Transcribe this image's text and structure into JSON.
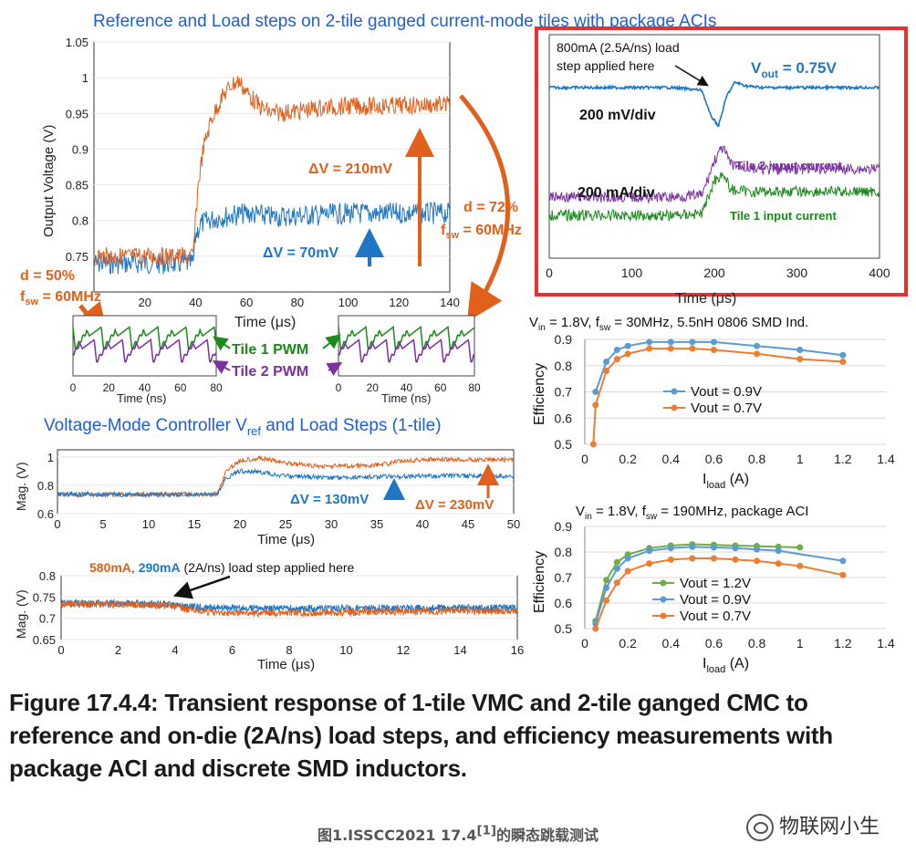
{
  "chart_data": [
    {
      "type": "line",
      "title": "Reference and Load steps on 2-tile ganged current-mode tiles with package ACIs",
      "xlabel": "Time (μs)",
      "ylabel": "Output Voltage (V)",
      "xlim": [
        0,
        140
      ],
      "ylim": [
        0.7,
        1.05
      ],
      "xticks": [
        "20",
        "40",
        "60",
        "80",
        "100",
        "120",
        "140"
      ],
      "yticks": [
        "0.75",
        "0.8",
        "0.85",
        "0.9",
        "0.95",
        "1",
        "1.05"
      ],
      "series": [
        {
          "color": "#e0601c",
          "x": [
            0,
            10,
            20,
            30,
            39,
            40,
            41,
            43,
            46,
            50,
            54,
            57,
            60,
            65,
            70,
            80,
            90,
            100,
            110,
            120,
            130,
            139
          ],
          "y": [
            0.75,
            0.75,
            0.75,
            0.75,
            0.75,
            0.8,
            0.85,
            0.9,
            0.94,
            0.97,
            0.99,
            0.995,
            0.98,
            0.96,
            0.95,
            0.953,
            0.958,
            0.96,
            0.96,
            0.961,
            0.962,
            0.962
          ]
        },
        {
          "color": "#1f77c4",
          "x": [
            0,
            10,
            20,
            30,
            39,
            40,
            42,
            45,
            50,
            60,
            70,
            80,
            90,
            100,
            110,
            120,
            130,
            139
          ],
          "y": [
            0.74,
            0.74,
            0.74,
            0.74,
            0.74,
            0.78,
            0.795,
            0.8,
            0.805,
            0.81,
            0.805,
            0.807,
            0.808,
            0.81,
            0.81,
            0.81,
            0.81,
            0.81
          ]
        }
      ],
      "annotations": {
        "dv_orange": "ΔV = 210mV",
        "dv_blue": "ΔV = 70mV",
        "d50_line1": "d = 50%",
        "d50_line2": "f",
        "d50_sub": "sw",
        "d50_tail": " = 60MHz",
        "d72_line1": "d = 72%",
        "d72_line2": "f",
        "d72_sub": "sw",
        "d72_tail": " = 60MHz"
      }
    },
    {
      "type": "line",
      "title": "",
      "xlabel": "Time (μs)",
      "xlim": [
        0,
        400
      ],
      "xticks": [
        "0",
        "100",
        "200",
        "300",
        "400"
      ],
      "series": [
        {
          "name": "Vout",
          "color": "#1f77c4",
          "x": [
            0,
            150,
            185,
            195,
            205,
            215,
            225,
            240,
            260,
            300,
            400
          ],
          "y": [
            0,
            0,
            -0.1,
            -1.0,
            -1.4,
            -0.3,
            0.2,
            0.05,
            0,
            0,
            0
          ]
        },
        {
          "name": "Tile 2 input current",
          "color": "#7b2fa0",
          "x": [
            0,
            150,
            185,
            200,
            210,
            220,
            240,
            260,
            300,
            400
          ],
          "y": [
            0,
            0,
            0.1,
            2.0,
            2.7,
            1.8,
            1.6,
            1.5,
            1.55,
            1.55
          ]
        },
        {
          "name": "Tile 1 input current",
          "color": "#1a8a1a",
          "x": [
            0,
            150,
            185,
            200,
            210,
            220,
            240,
            260,
            300,
            400
          ],
          "y": [
            0,
            0,
            0.1,
            1.9,
            2.3,
            1.4,
            1.3,
            1.3,
            1.3,
            1.3
          ]
        }
      ],
      "annotations": {
        "step_l1": "800mA (2.5A/ns) load",
        "step_l2": "step applied here",
        "vout_label": "V",
        "vout_sub": "out",
        "vout_tail": " = 0.75V",
        "mv_div": "200 mV/div",
        "ma_div": "200 mA/div",
        "tile2": "Tile 2 input current",
        "tile1": "Tile 1 input current"
      }
    },
    {
      "type": "line",
      "title": "",
      "xlabel": "Time (ns)",
      "xlim": [
        0,
        80
      ],
      "xticks": [
        "0",
        "20",
        "40",
        "60",
        "80"
      ],
      "series": [
        {
          "name": "Tile 1 PWM",
          "color": "#1a8a1a"
        },
        {
          "name": "Tile 2 PWM",
          "color": "#7b2fa0"
        }
      ],
      "annotations": {
        "tile1": "Tile 1 PWM",
        "tile2": "Tile 2 PWM"
      }
    },
    {
      "type": "line",
      "title": "Voltage-Mode Controller V",
      "title_sub": "ref",
      "title_tail": " and Load Steps (1-tile)",
      "xlabel": "Time (μs)",
      "ylabel": "Mag. (V)",
      "xlim": [
        0,
        50
      ],
      "ylim": [
        0.6,
        1.05
      ],
      "xticks": [
        "0",
        "5",
        "10",
        "15",
        "20",
        "25",
        "30",
        "35",
        "40",
        "45",
        "50"
      ],
      "yticks": [
        "0.6",
        "0.8",
        "1"
      ],
      "series": [
        {
          "color": "#e0601c",
          "x": [
            0,
            10,
            17.5,
            18.5,
            20,
            22,
            25,
            28,
            30,
            34,
            36,
            38,
            40,
            45,
            50
          ],
          "y": [
            0.735,
            0.735,
            0.735,
            0.9,
            0.975,
            0.99,
            0.96,
            0.935,
            0.935,
            0.937,
            0.95,
            0.975,
            0.98,
            0.98,
            0.98
          ]
        },
        {
          "color": "#1f77c4",
          "x": [
            0,
            10,
            17.5,
            18.5,
            20,
            22,
            25,
            30,
            35,
            40,
            45,
            50
          ],
          "y": [
            0.735,
            0.735,
            0.735,
            0.85,
            0.9,
            0.895,
            0.865,
            0.855,
            0.86,
            0.865,
            0.865,
            0.865
          ]
        }
      ],
      "annotations": {
        "dv_blue": "ΔV = 130mV",
        "dv_orange": "ΔV = 230mV"
      }
    },
    {
      "type": "line",
      "title": "",
      "xlabel": "Time (μs)",
      "ylabel": "Mag. (V)",
      "xlim": [
        0,
        16
      ],
      "ylim": [
        0.65,
        0.8
      ],
      "xticks": [
        "0",
        "2",
        "4",
        "6",
        "8",
        "10",
        "12",
        "14",
        "16"
      ],
      "yticks": [
        "0.65",
        "0.7",
        "0.75",
        "0.8"
      ],
      "series": [
        {
          "color": "#1f77c4",
          "x": [
            0,
            2,
            3.8,
            4.5,
            5.5,
            7,
            9,
            12,
            16
          ],
          "y": [
            0.735,
            0.735,
            0.733,
            0.727,
            0.724,
            0.723,
            0.723,
            0.724,
            0.724
          ]
        },
        {
          "color": "#e0601c",
          "x": [
            0,
            2,
            3.8,
            4.5,
            5.5,
            7,
            9,
            12,
            16
          ],
          "y": [
            0.733,
            0.733,
            0.73,
            0.72,
            0.713,
            0.712,
            0.713,
            0.716,
            0.718
          ]
        }
      ],
      "annotations": {
        "t_orange": "580mA",
        "t_comma": ", ",
        "t_blue": "290mA",
        "t_rest": " (2A/ns) load step applied here"
      }
    },
    {
      "type": "line",
      "title": "V",
      "title_sub": "in",
      "title_mid": " = 1.8V, f",
      "title_sub2": "sw",
      "title_tail": " = 30MHz, 5.5nH 0806 SMD Ind.",
      "xlabel": "I",
      "xlabel_sub": "load",
      "xlabel_tail": " (A)",
      "ylabel": "Efficiency",
      "xlim": [
        0,
        1.4
      ],
      "ylim": [
        0.5,
        0.9
      ],
      "xticks": [
        "0",
        "0.2",
        "0.4",
        "0.6",
        "0.8",
        "1",
        "1.2",
        "1.4"
      ],
      "yticks": [
        "0.5",
        "0.6",
        "0.7",
        "0.8",
        "0.9"
      ],
      "series": [
        {
          "name": "Vout = 0.9V",
          "color": "#5b9bd5",
          "x": [
            0.05,
            0.1,
            0.15,
            0.2,
            0.3,
            0.4,
            0.5,
            0.6,
            0.8,
            1.0,
            1.2
          ],
          "y": [
            0.7,
            0.815,
            0.86,
            0.875,
            0.89,
            0.89,
            0.89,
            0.89,
            0.875,
            0.86,
            0.84
          ]
        },
        {
          "name": "Vout = 0.7V",
          "color": "#ed7d31",
          "x": [
            0.04,
            0.05,
            0.1,
            0.15,
            0.2,
            0.3,
            0.4,
            0.5,
            0.6,
            0.8,
            1.0,
            1.2
          ],
          "y": [
            0.5,
            0.65,
            0.78,
            0.825,
            0.845,
            0.865,
            0.865,
            0.865,
            0.86,
            0.845,
            0.825,
            0.815
          ]
        }
      ]
    },
    {
      "type": "line",
      "title": "V",
      "title_sub": "in",
      "title_mid": " = 1.8V, f",
      "title_sub2": "sw",
      "title_tail": " = 190MHz, package ACI",
      "xlabel": "I",
      "xlabel_sub": "load",
      "xlabel_tail": " (A)",
      "ylabel": "Efficiency",
      "xlim": [
        0,
        1.4
      ],
      "ylim": [
        0.5,
        0.9
      ],
      "xticks": [
        "0",
        "0.2",
        "0.4",
        "0.6",
        "0.8",
        "1",
        "1.2",
        "1.4"
      ],
      "yticks": [
        "0.5",
        "0.6",
        "0.7",
        "0.8",
        "0.9"
      ],
      "series": [
        {
          "name": "Vout = 1.2V",
          "color": "#70ad47",
          "x": [
            0.05,
            0.1,
            0.15,
            0.2,
            0.3,
            0.4,
            0.5,
            0.6,
            0.7,
            0.8,
            0.9,
            1.0
          ],
          "y": [
            0.53,
            0.69,
            0.76,
            0.79,
            0.815,
            0.825,
            0.83,
            0.828,
            0.825,
            0.823,
            0.82,
            0.818
          ]
        },
        {
          "name": "Vout = 0.9V",
          "color": "#5b9bd5",
          "x": [
            0.05,
            0.1,
            0.15,
            0.2,
            0.3,
            0.4,
            0.5,
            0.6,
            0.7,
            0.8,
            0.9,
            1.2
          ],
          "y": [
            0.52,
            0.66,
            0.735,
            0.775,
            0.805,
            0.815,
            0.82,
            0.818,
            0.815,
            0.81,
            0.805,
            0.765
          ]
        },
        {
          "name": "Vout = 0.7V",
          "color": "#ed7d31",
          "x": [
            0.05,
            0.1,
            0.15,
            0.2,
            0.3,
            0.4,
            0.5,
            0.6,
            0.7,
            0.8,
            0.9,
            1.0,
            1.2
          ],
          "y": [
            0.5,
            0.61,
            0.68,
            0.725,
            0.755,
            0.77,
            0.775,
            0.775,
            0.77,
            0.765,
            0.755,
            0.745,
            0.71
          ]
        }
      ]
    }
  ],
  "caption": "Figure 17.4.4: Transient response of 1-tile VMC and 2-tile ganged CMC to reference and on-die (2A/ns) load steps, and efficiency measurements with package ACI and discrete SMD inductors.",
  "footer": {
    "main": "图1.ISSCC2021 17.4",
    "sup": "[1]",
    "tail": "的瞬态跳载测试"
  },
  "watermark": {
    "text": "物联网小生",
    "icon": "wechat-icon"
  }
}
